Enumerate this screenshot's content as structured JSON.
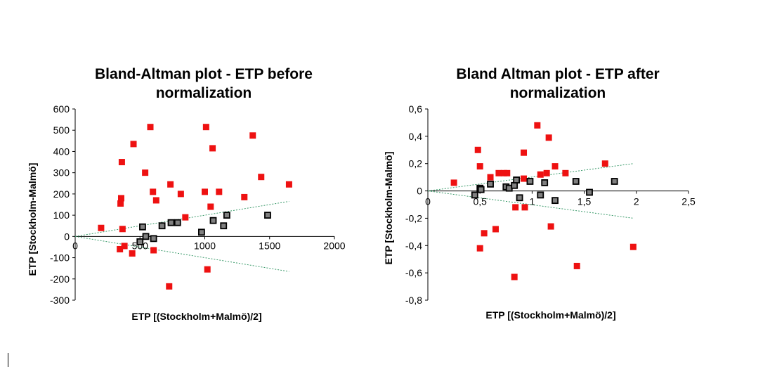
{
  "colors": {
    "group_red": "#ee1111",
    "group_grey": "#808080",
    "marker_edge": "#000000",
    "reference_line": "#3a9a6a",
    "axis": "#000000"
  },
  "chart_data": [
    {
      "type": "scatter",
      "title_lines": [
        "Bland-Altman plot - ETP before",
        "normalization"
      ],
      "xlabel": "ETP [(Stockholm+Malmö)/2]",
      "ylabel": "ETP [Stockholm-Malmö]",
      "xlim": [
        0,
        2000
      ],
      "ylim": [
        -300,
        600
      ],
      "xticks": [
        0,
        500,
        1000,
        1500,
        2000
      ],
      "xtick_labels": [
        "0",
        "500",
        "1000",
        "1500",
        "2000"
      ],
      "yticks": [
        600,
        500,
        400,
        300,
        200,
        100,
        0,
        -100,
        -200,
        -300
      ],
      "ytick_labels": [
        "600",
        "500",
        "400",
        "300",
        "200",
        "100",
        "0",
        "-100",
        "-200",
        "-300"
      ],
      "grid": false,
      "series": [
        {
          "color": "#ee1111",
          "marker": "square-filled",
          "x": [
            200,
            350,
            360,
            355,
            365,
            345,
            380,
            440,
            450,
            540,
            580,
            605,
            600,
            625,
            725,
            735,
            815,
            850,
            1000,
            1010,
            1020,
            1045,
            1060,
            1110,
            1305,
            1370,
            1435,
            1650
          ],
          "y": [
            40,
            155,
            350,
            180,
            35,
            -60,
            -45,
            -80,
            435,
            300,
            515,
            -65,
            210,
            170,
            -235,
            245,
            200,
            90,
            210,
            515,
            -155,
            140,
            415,
            210,
            185,
            475,
            280,
            245
          ]
        },
        {
          "color": "#808080",
          "marker": "square-outlined",
          "x": [
            500,
            520,
            545,
            605,
            670,
            740,
            790,
            975,
            1065,
            1145,
            1170,
            1485
          ],
          "y": [
            -25,
            45,
            0,
            -10,
            50,
            65,
            65,
            20,
            75,
            50,
            100,
            100
          ]
        },
        {
          "type": "line",
          "style": "dotted",
          "color": "#3a9a6a",
          "x": [
            0,
            1650
          ],
          "y": [
            0,
            165
          ]
        },
        {
          "type": "line",
          "style": "dotted",
          "color": "#3a9a6a",
          "x": [
            0,
            1650
          ],
          "y": [
            0,
            -165
          ]
        }
      ]
    },
    {
      "type": "scatter",
      "title_lines": [
        "Bland Altman plot - ETP after",
        "normalization"
      ],
      "xlabel": "ETP [(Stockholm+Malmö)/2]",
      "ylabel": "ETP [Stockholm-Malmö]",
      "xlim": [
        0,
        2.5
      ],
      "ylim": [
        -0.8,
        0.6
      ],
      "xticks": [
        0,
        0.5,
        1,
        1.5,
        2,
        2.5
      ],
      "xtick_labels": [
        "0",
        "0,5",
        "1",
        "1,5",
        "2",
        "2,5"
      ],
      "yticks": [
        0.6,
        0.4,
        0.2,
        0,
        -0.2,
        -0.4,
        -0.6,
        -0.8
      ],
      "ytick_labels": [
        "0,6",
        "0,4",
        "0,2",
        "0",
        "-0,2",
        "-0,4",
        "-0,6",
        "-0,8"
      ],
      "grid": false,
      "series": [
        {
          "color": "#ee1111",
          "marker": "square-filled",
          "x": [
            0.25,
            0.48,
            0.5,
            0.5,
            0.54,
            0.6,
            0.65,
            0.68,
            0.73,
            0.76,
            0.83,
            0.84,
            0.92,
            0.92,
            0.93,
            1.05,
            1.08,
            1.14,
            1.16,
            1.18,
            1.22,
            1.32,
            1.43,
            1.7,
            1.97
          ],
          "y": [
            0.06,
            0.3,
            0.18,
            -0.42,
            -0.31,
            0.1,
            -0.28,
            0.13,
            0.13,
            0.13,
            -0.63,
            -0.12,
            0.28,
            0.09,
            -0.12,
            0.48,
            0.12,
            0.13,
            0.39,
            -0.26,
            0.18,
            0.13,
            -0.55,
            0.2,
            -0.41
          ]
        },
        {
          "color": "#808080",
          "marker": "square-outlined",
          "x": [
            0.45,
            0.5,
            0.51,
            0.6,
            0.75,
            0.78,
            0.83,
            0.85,
            0.88,
            0.98,
            1.08,
            1.12,
            1.22,
            1.42,
            1.55,
            1.79
          ],
          "y": [
            -0.03,
            0.02,
            0.01,
            0.05,
            0.03,
            0.02,
            0.04,
            0.08,
            -0.05,
            0.07,
            -0.03,
            0.06,
            -0.07,
            0.07,
            -0.01,
            0.07
          ]
        },
        {
          "type": "line",
          "style": "dotted",
          "color": "#3a9a6a",
          "x": [
            0,
            1.97
          ],
          "y": [
            0,
            0.2
          ]
        },
        {
          "type": "line",
          "style": "dotted",
          "color": "#3a9a6a",
          "x": [
            0,
            1.97
          ],
          "y": [
            0,
            -0.2
          ]
        }
      ]
    }
  ]
}
